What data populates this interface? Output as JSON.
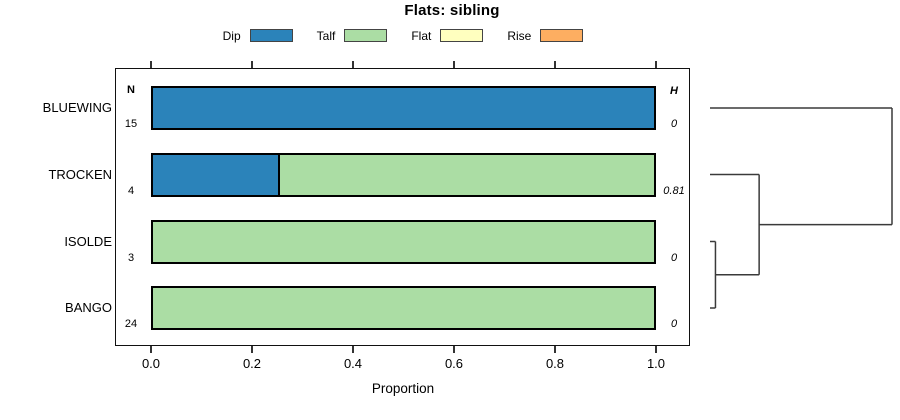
{
  "title": "Flats: sibling",
  "legend": {
    "items": [
      {
        "label": "Dip",
        "color": "#2B83BA"
      },
      {
        "label": "Talf",
        "color": "#ABDDA4"
      },
      {
        "label": "Flat",
        "color": "#FFFFBF"
      },
      {
        "label": "Rise",
        "color": "#FDAE61"
      }
    ]
  },
  "axis": {
    "tick_labels": [
      "0.0",
      "0.2",
      "0.4",
      "0.6",
      "0.8",
      "1.0"
    ],
    "label": "Proportion"
  },
  "columns": {
    "n_header": "N",
    "h_header": "H"
  },
  "rows": [
    {
      "label": "BLUEWING",
      "n": "15",
      "h": "0",
      "segments": [
        {
          "name": "Dip",
          "value": 1.0,
          "color": "#2B83BA"
        }
      ]
    },
    {
      "label": "TROCKEN",
      "n": "4",
      "h": "0.81",
      "segments": [
        {
          "name": "Dip",
          "value": 0.25,
          "color": "#2B83BA"
        },
        {
          "name": "Talf",
          "value": 0.75,
          "color": "#ABDDA4"
        }
      ]
    },
    {
      "label": "ISOLDE",
      "n": "3",
      "h": "0",
      "segments": [
        {
          "name": "Talf",
          "value": 1.0,
          "color": "#ABDDA4"
        }
      ]
    },
    {
      "label": "BANGO",
      "n": "24",
      "h": "0",
      "segments": [
        {
          "name": "Talf",
          "value": 1.0,
          "color": "#ABDDA4"
        }
      ]
    }
  ],
  "chart_data": {
    "type": "bar",
    "orientation": "horizontal",
    "stacked": true,
    "title": "Flats: sibling",
    "categories": [
      "BLUEWING",
      "TROCKEN",
      "ISOLDE",
      "BANGO"
    ],
    "series": [
      {
        "name": "Dip",
        "color": "#2B83BA",
        "values": [
          1.0,
          0.25,
          0,
          0
        ]
      },
      {
        "name": "Talf",
        "color": "#ABDDA4",
        "values": [
          0,
          0.75,
          1.0,
          1.0
        ]
      },
      {
        "name": "Flat",
        "color": "#FFFFBF",
        "values": [
          0,
          0,
          0,
          0
        ]
      },
      {
        "name": "Rise",
        "color": "#FDAE61",
        "values": [
          0,
          0,
          0,
          0
        ]
      }
    ],
    "n_values": [
      15,
      4,
      3,
      24
    ],
    "h_values": [
      0,
      0.81,
      0,
      0
    ],
    "xlabel": "Proportion",
    "xlim": [
      0,
      1
    ],
    "xticks": [
      0.0,
      0.2,
      0.4,
      0.6,
      0.8,
      1.0
    ],
    "legend_position": "top",
    "grid": false,
    "dendrogram": {
      "side": "right",
      "leaf_order": [
        "BLUEWING",
        "TROCKEN",
        "ISOLDE",
        "BANGO"
      ],
      "merges": [
        {
          "a": "ISOLDE",
          "b": "BANGO",
          "rel_height": 0.03
        },
        {
          "a": "merge0",
          "b": "TROCKEN",
          "rel_height": 0.27
        },
        {
          "a": "merge1",
          "b": "BLUEWING",
          "rel_height": 1.0
        }
      ]
    }
  }
}
